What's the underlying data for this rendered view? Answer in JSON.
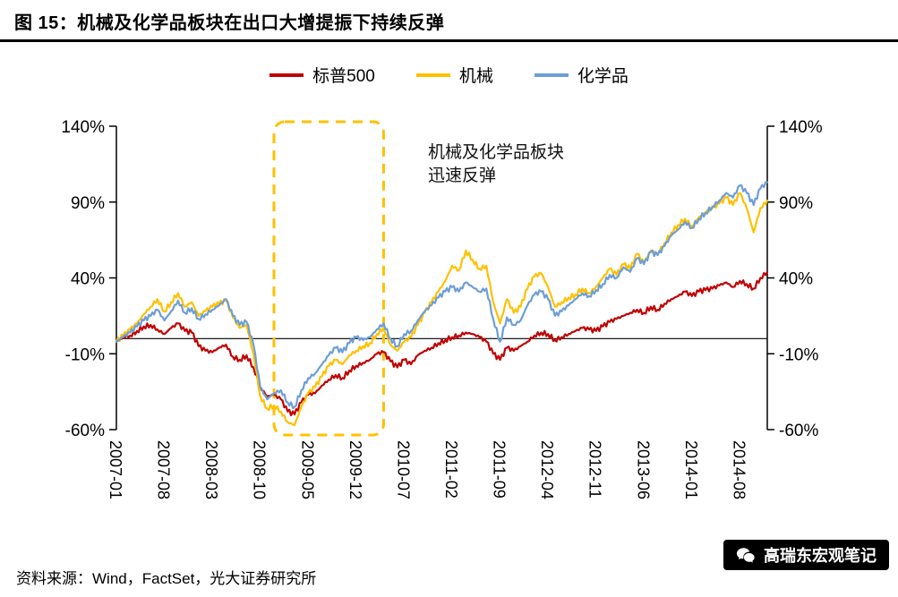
{
  "title": "图 15：机械及化学品板块在出口大增提振下持续反弹",
  "source": "资料来源：Wind，FactSet，光大证券研究所",
  "watermark": {
    "label": "高瑞东宏观笔记",
    "icon": "wechat-icon"
  },
  "chart_data": {
    "type": "line",
    "title": "图 15：机械及化学品板块在出口大增提振下持续反弹",
    "unit": "%",
    "ylim": [
      -60,
      140
    ],
    "zero_line": 0,
    "grid": false,
    "legend_position": "top",
    "y_ticks": [
      {
        "label": "140%",
        "value": 140
      },
      {
        "label": "90%",
        "value": 90
      },
      {
        "label": "40%",
        "value": 40
      },
      {
        "label": "-10%",
        "value": -10
      },
      {
        "label": "-60%",
        "value": -60
      }
    ],
    "x_start": "2007-01",
    "x_end": "2014-12",
    "x_ticks": [
      {
        "label": "2007-01",
        "month": 0
      },
      {
        "label": "2007-08",
        "month": 7
      },
      {
        "label": "2008-03",
        "month": 14
      },
      {
        "label": "2008-10",
        "month": 21
      },
      {
        "label": "2009-05",
        "month": 28
      },
      {
        "label": "2009-12",
        "month": 35
      },
      {
        "label": "2010-07",
        "month": 42
      },
      {
        "label": "2011-02",
        "month": 49
      },
      {
        "label": "2011-09",
        "month": 56
      },
      {
        "label": "2012-04",
        "month": 63
      },
      {
        "label": "2012-11",
        "month": 70
      },
      {
        "label": "2013-06",
        "month": 77
      },
      {
        "label": "2014-01",
        "month": 84
      },
      {
        "label": "2014-08",
        "month": 91
      }
    ],
    "series": [
      {
        "id": "sp500",
        "name": "标普500",
        "color": "#C00000",
        "monthly_values": [
          -2,
          1,
          2,
          5,
          8,
          9,
          6,
          3,
          7,
          10,
          5,
          4,
          -5,
          -8,
          -9,
          -6,
          -4,
          -12,
          -14,
          -11,
          -19,
          -32,
          -38,
          -37,
          -40,
          -48,
          -50,
          -42,
          -37,
          -36,
          -31,
          -27,
          -24,
          -26,
          -21,
          -18,
          -16,
          -14,
          -10,
          -9,
          -15,
          -19,
          -14,
          -17,
          -11,
          -8,
          -6,
          -3,
          -1,
          1,
          2,
          4,
          3,
          1,
          -2,
          -10,
          -14,
          -6,
          -8,
          -5,
          -2,
          2,
          4,
          3,
          -1,
          1,
          3,
          5,
          7,
          6,
          5,
          8,
          11,
          13,
          15,
          17,
          19,
          17,
          21,
          19,
          23,
          26,
          28,
          31,
          28,
          31,
          32,
          33,
          35,
          37,
          34,
          38,
          36,
          33,
          40,
          44
        ]
      },
      {
        "id": "machinery",
        "name": "机械",
        "color": "#FFC000",
        "monthly_values": [
          -2,
          2,
          6,
          10,
          16,
          21,
          26,
          18,
          24,
          30,
          21,
          24,
          15,
          18,
          21,
          23,
          25,
          14,
          7,
          9,
          -10,
          -38,
          -46,
          -44,
          -48,
          -55,
          -57,
          -45,
          -36,
          -32,
          -25,
          -18,
          -14,
          -17,
          -11,
          -8,
          -5,
          -3,
          3,
          7,
          -4,
          -8,
          -2,
          1,
          9,
          17,
          24,
          31,
          38,
          48,
          45,
          58,
          52,
          46,
          48,
          24,
          10,
          26,
          17,
          21,
          33,
          41,
          43,
          34,
          21,
          24,
          27,
          29,
          33,
          30,
          34,
          40,
          46,
          42,
          49,
          46,
          56,
          50,
          58,
          56,
          63,
          70,
          75,
          79,
          74,
          80,
          83,
          86,
          89,
          93,
          88,
          96,
          86,
          70,
          86,
          91
        ]
      },
      {
        "id": "chemicals",
        "name": "化学品",
        "color": "#6D9ED6",
        "monthly_values": [
          -2,
          1,
          4,
          8,
          12,
          15,
          19,
          12,
          18,
          25,
          17,
          20,
          13,
          16,
          19,
          22,
          26,
          15,
          9,
          11,
          -4,
          -32,
          -40,
          -36,
          -34,
          -42,
          -45,
          -34,
          -26,
          -23,
          -17,
          -11,
          -6,
          -9,
          -3,
          1,
          -1,
          1,
          6,
          10,
          0,
          -5,
          3,
          5,
          12,
          18,
          22,
          27,
          31,
          34,
          31,
          37,
          34,
          31,
          33,
          13,
          -2,
          14,
          9,
          12,
          22,
          29,
          31,
          26,
          15,
          18,
          22,
          26,
          30,
          28,
          32,
          36,
          42,
          40,
          47,
          44,
          53,
          49,
          57,
          55,
          61,
          68,
          72,
          77,
          73,
          79,
          83,
          87,
          91,
          96,
          93,
          101,
          96,
          88,
          99,
          103
        ]
      }
    ],
    "annotation": {
      "text_lines": [
        "机械及化学品板块",
        "迅速反弹"
      ],
      "box": {
        "from_month": 23,
        "to_month": 39,
        "color": "#FFC000"
      }
    }
  }
}
